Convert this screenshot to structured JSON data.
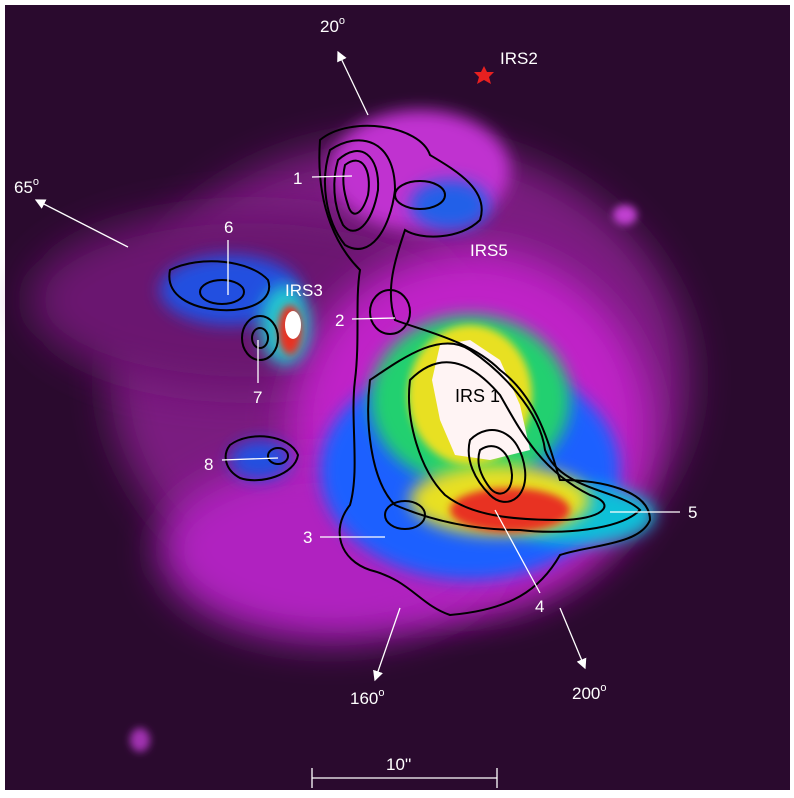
{
  "labels": {
    "irs1": "IRS 1",
    "irs2": "IRS2",
    "irs3": "IRS3",
    "irs5": "IRS5"
  },
  "sources": [
    "1",
    "2",
    "3",
    "4",
    "5",
    "6",
    "7",
    "8"
  ],
  "angles": [
    {
      "value": "20",
      "sup": "o"
    },
    {
      "value": "65",
      "sup": "o"
    },
    {
      "value": "160",
      "sup": "o"
    },
    {
      "value": "200",
      "sup": "o"
    }
  ],
  "scale_bar": "10''"
}
